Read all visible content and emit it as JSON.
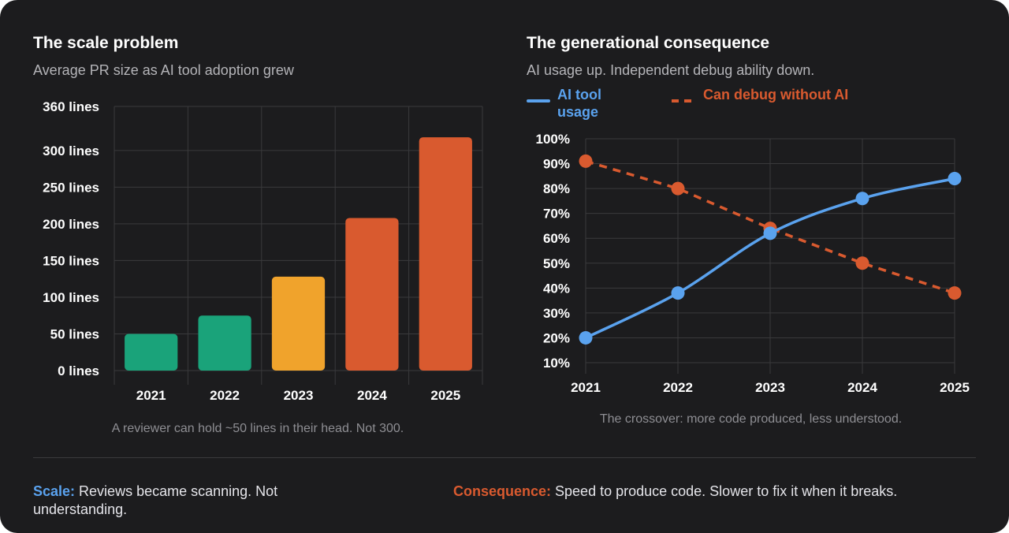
{
  "colors": {
    "background": "#1c1c1e",
    "green": "#1aa37a",
    "amber": "#f0a32c",
    "orange": "#d95a2f",
    "blue": "#5aa2ee",
    "grid": "#3a3a3c"
  },
  "left_panel": {
    "title": "The scale problem",
    "subtitle": "Average PR size as AI tool adoption grew",
    "caption": "A reviewer can hold ~50 lines in their head. Not 300."
  },
  "right_panel": {
    "title": "The generational consequence",
    "subtitle": "AI usage up. Independent debug ability down.",
    "caption": "The crossover: more code produced, less understood."
  },
  "chart_data": [
    {
      "type": "bar",
      "title": "The scale problem",
      "subtitle": "Average PR size as AI tool adoption grew",
      "categories": [
        "2021",
        "2022",
        "2023",
        "2024",
        "2025"
      ],
      "values": [
        50,
        75,
        128,
        208,
        318
      ],
      "bar_colors": [
        "#1aa37a",
        "#1aa37a",
        "#f0a32c",
        "#d95a2f",
        "#d95a2f"
      ],
      "ylim": [
        0,
        360
      ],
      "yticks": [
        0,
        50,
        100,
        150,
        200,
        250,
        300,
        360
      ],
      "ytick_labels": [
        "0 lines",
        "50 lines",
        "100 lines",
        "150 lines",
        "200 lines",
        "250 lines",
        "300 lines",
        "360 lines"
      ],
      "grid": true
    },
    {
      "type": "line",
      "title": "The generational consequence",
      "subtitle": "AI usage up. Independent debug ability down.",
      "x": [
        "2021",
        "2022",
        "2023",
        "2024",
        "2025"
      ],
      "series": [
        {
          "name": "AI tool usage",
          "values": [
            20,
            38,
            62,
            76,
            84
          ],
          "color": "#5aa2ee",
          "style": "solid"
        },
        {
          "name": "Can debug without AI",
          "values": [
            91,
            80,
            64,
            50,
            38
          ],
          "color": "#d95a2f",
          "style": "dashed"
        }
      ],
      "ylim": [
        10,
        100
      ],
      "yticks": [
        10,
        20,
        30,
        40,
        50,
        60,
        70,
        80,
        90,
        100
      ],
      "ytick_labels": [
        "10%",
        "20%",
        "30%",
        "40%",
        "50%",
        "60%",
        "70%",
        "80%",
        "90%",
        "100%"
      ],
      "legend": "top-left",
      "grid": true
    }
  ],
  "footer": {
    "scale_lead": "Scale:",
    "scale_text": " Reviews became scanning. Not understanding.",
    "consequence_lead": "Consequence:",
    "consequence_text": " Speed to produce code. Slower to fix it when it breaks."
  }
}
